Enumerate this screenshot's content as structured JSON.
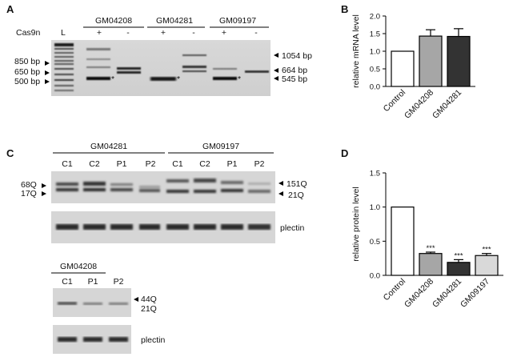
{
  "panels": {
    "A": {
      "letter": "A",
      "ladder_label": "L",
      "cas9n_label": "Cas9n",
      "groups": [
        {
          "name": "GM04208",
          "signs": [
            "+",
            "-"
          ]
        },
        {
          "name": "GM04281",
          "signs": [
            "+",
            "-"
          ]
        },
        {
          "name": "GM09197",
          "signs": [
            "+",
            "-"
          ]
        }
      ],
      "left_markers": [
        "850 bp",
        "650 bp",
        "500 bp"
      ],
      "right_markers": [
        "1054 bp",
        "664 bp",
        "545 bp"
      ],
      "asterisk": "*"
    },
    "C": {
      "letter": "C",
      "groups": [
        {
          "name": "GM04281",
          "lanes": [
            "C1",
            "C2",
            "P1",
            "P2"
          ]
        },
        {
          "name": "GM09197",
          "lanes": [
            "C1",
            "C2",
            "P1",
            "P2"
          ]
        }
      ],
      "left_labels": [
        "68Q",
        "17Q"
      ],
      "right_labels": [
        "151Q",
        "21Q"
      ],
      "loading_label": "plectin",
      "lower": {
        "group": "GM04208",
        "lanes": [
          "C1",
          "P1",
          "P2"
        ],
        "right_labels": [
          "44Q",
          "21Q"
        ],
        "loading_label": "plectin"
      }
    },
    "B": {
      "letter": "B"
    },
    "D": {
      "letter": "D"
    }
  },
  "chart_data": [
    {
      "panel": "B",
      "type": "bar",
      "categories": [
        "Control",
        "GM04208",
        "GM04281"
      ],
      "values": [
        1.0,
        1.43,
        1.42
      ],
      "errors": [
        0,
        0.18,
        0.22
      ],
      "colors": [
        "#ffffff",
        "#a6a6a6",
        "#333333"
      ],
      "ylabel": "relative mRNA level",
      "ylim": [
        0,
        2.0
      ],
      "yticks": [
        "0.0",
        "0.5",
        "1.0",
        "1.5",
        "2.0"
      ]
    },
    {
      "panel": "D",
      "type": "bar",
      "categories": [
        "Control",
        "GM04208",
        "GM04281",
        "GM09197"
      ],
      "values": [
        1.0,
        0.32,
        0.19,
        0.29
      ],
      "errors": [
        0,
        0.02,
        0.04,
        0.03
      ],
      "significance": [
        "",
        "***",
        "***",
        "***"
      ],
      "colors": [
        "#ffffff",
        "#a6a6a6",
        "#333333",
        "#d9d9d9"
      ],
      "ylabel": "relative protein level",
      "ylim": [
        0,
        1.5
      ],
      "yticks": [
        "0.0",
        "0.5",
        "1.0",
        "1.5"
      ]
    }
  ]
}
